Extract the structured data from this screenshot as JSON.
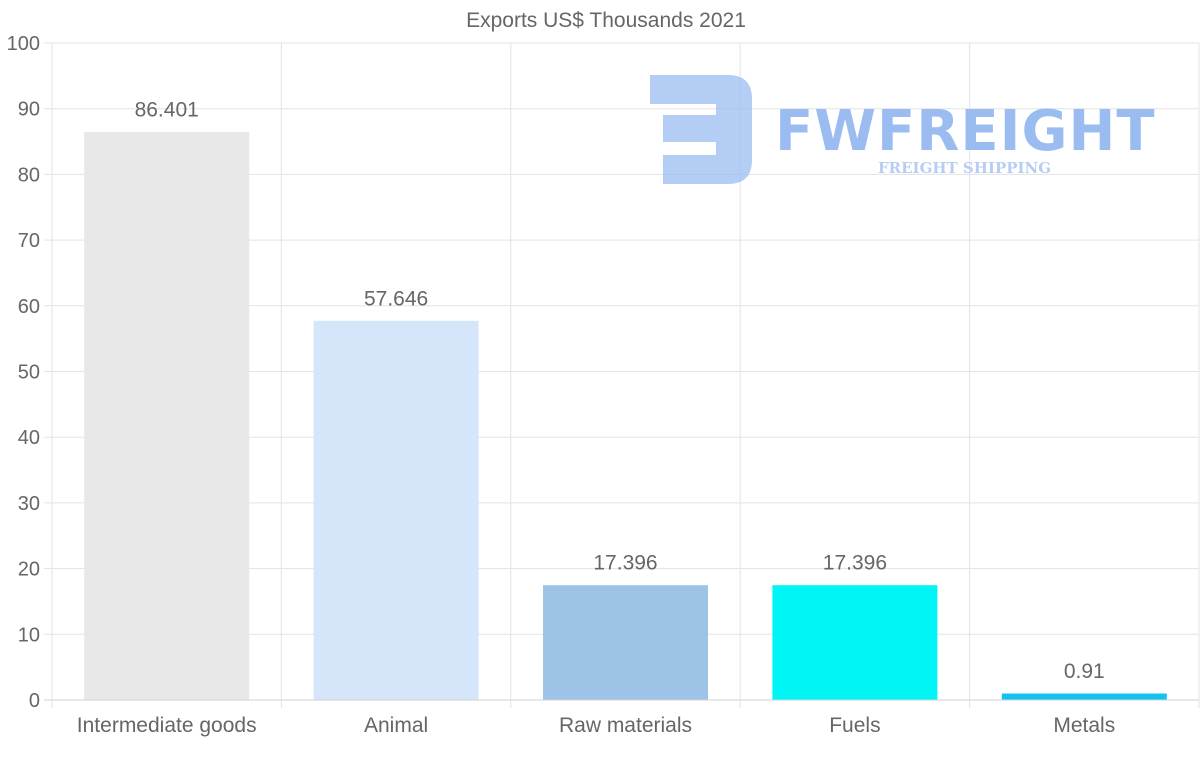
{
  "chart_data": {
    "type": "bar",
    "title": "Exports US$ Thousands 2021",
    "categories": [
      "Intermediate goods",
      "Animal",
      "Raw materials",
      "Fuels",
      "Metals"
    ],
    "values": [
      86.401,
      57.646,
      17.396,
      17.396,
      0.91
    ],
    "data_labels": [
      "86.401",
      "57.646",
      "17.396",
      "17.396",
      "0.91"
    ],
    "colors": [
      "#e8e8e8",
      "#d6e6fa",
      "#9dc3e6",
      "#00f5f5",
      "#14c2f2"
    ],
    "ylim": [
      0,
      100
    ],
    "yticks": [
      0,
      10,
      20,
      30,
      40,
      50,
      60,
      70,
      80,
      90,
      100
    ],
    "xlabel": "",
    "ylabel": "",
    "grid": true,
    "legend": "none"
  },
  "watermark": {
    "brand": "FWFREIGHT",
    "tagline": "FREIGHT SHIPPING",
    "color": "#9bbcf0"
  }
}
